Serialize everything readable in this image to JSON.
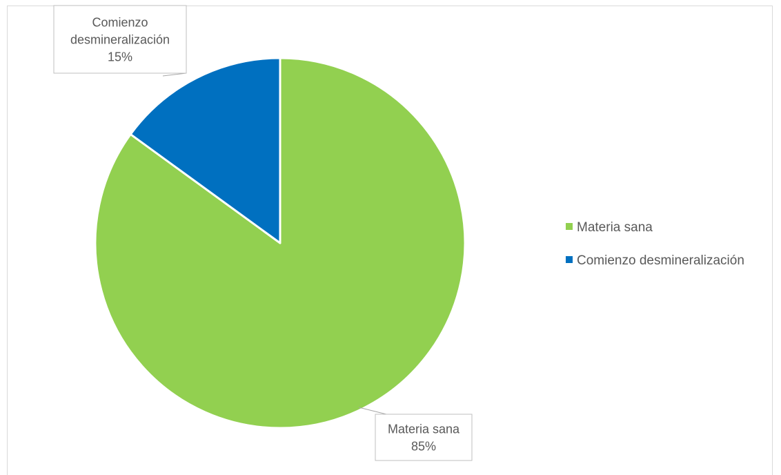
{
  "chart_data": {
    "type": "pie",
    "title": "",
    "categories": [
      "Materia sana",
      "Comienzo desmineralización"
    ],
    "values": [
      85,
      15
    ],
    "unit": "%",
    "colors": [
      "#92D050",
      "#0070C0"
    ],
    "data_labels": [
      {
        "name": "Materia sana",
        "value": "85%"
      },
      {
        "name": "Comienzo desmineralización",
        "value": "15%"
      }
    ],
    "legend": {
      "position": "right",
      "entries": [
        "Materia sana",
        "Comienzo desmineralización"
      ]
    }
  }
}
